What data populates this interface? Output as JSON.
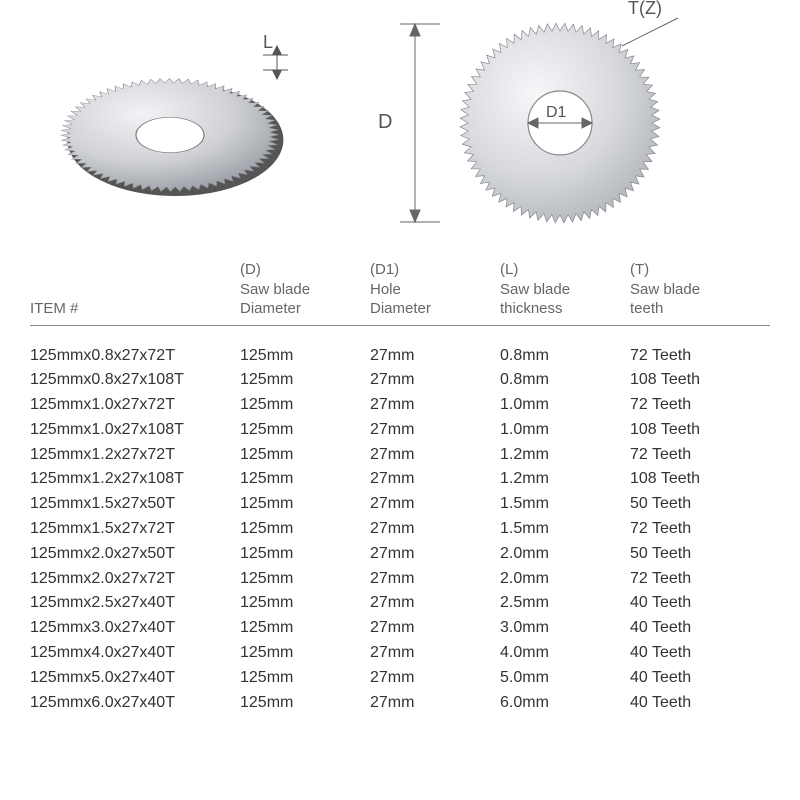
{
  "diagram": {
    "label_L": "L",
    "label_D": "D",
    "label_D1": "D1",
    "label_TZ": "T(Z)",
    "blade_outer_r": 95,
    "blade_inner_r": 30,
    "teeth_count": 72,
    "colors": {
      "blade_fill": "#d8dade",
      "blade_stroke": "#888",
      "blade_shadow": "#555",
      "dim_line": "#666",
      "text": "#555"
    }
  },
  "table": {
    "header_item": "ITEM #",
    "header_D_code": "(D)",
    "header_D_label": "Saw blade\nDiameter",
    "header_D1_code": "(D1)",
    "header_D1_label": "Hole\nDiameter",
    "header_L_code": "(L)",
    "header_L_label": "Saw blade\nthickness",
    "header_T_code": "(T)",
    "header_T_label": "Saw blade\nteeth",
    "rows": [
      {
        "item": "125mmx0.8x27x72T",
        "D": "125mm",
        "D1": "27mm",
        "L": "0.8mm",
        "T": "72 Teeth"
      },
      {
        "item": "125mmx0.8x27x108T",
        "D": "125mm",
        "D1": "27mm",
        "L": "0.8mm",
        "T": "108 Teeth"
      },
      {
        "item": "125mmx1.0x27x72T",
        "D": "125mm",
        "D1": "27mm",
        "L": "1.0mm",
        "T": "72 Teeth"
      },
      {
        "item": "125mmx1.0x27x108T",
        "D": "125mm",
        "D1": "27mm",
        "L": "1.0mm",
        "T": "108 Teeth"
      },
      {
        "item": "125mmx1.2x27x72T",
        "D": "125mm",
        "D1": "27mm",
        "L": "1.2mm",
        "T": "72 Teeth"
      },
      {
        "item": "125mmx1.2x27x108T",
        "D": "125mm",
        "D1": "27mm",
        "L": "1.2mm",
        "T": "108 Teeth"
      },
      {
        "item": "125mmx1.5x27x50T",
        "D": "125mm",
        "D1": "27mm",
        "L": "1.5mm",
        "T": "50 Teeth"
      },
      {
        "item": "125mmx1.5x27x72T",
        "D": "125mm",
        "D1": "27mm",
        "L": "1.5mm",
        "T": "72 Teeth"
      },
      {
        "item": "125mmx2.0x27x50T",
        "D": "125mm",
        "D1": "27mm",
        "L": "2.0mm",
        "T": "50 Teeth"
      },
      {
        "item": "125mmx2.0x27x72T",
        "D": "125mm",
        "D1": "27mm",
        "L": "2.0mm",
        "T": "72 Teeth"
      },
      {
        "item": "125mmx2.5x27x40T",
        "D": "125mm",
        "D1": "27mm",
        "L": "2.5mm",
        "T": "40 Teeth"
      },
      {
        "item": "125mmx3.0x27x40T",
        "D": "125mm",
        "D1": "27mm",
        "L": "3.0mm",
        "T": "40 Teeth"
      },
      {
        "item": "125mmx4.0x27x40T",
        "D": "125mm",
        "D1": "27mm",
        "L": "4.0mm",
        "T": "40 Teeth"
      },
      {
        "item": "125mmx5.0x27x40T",
        "D": "125mm",
        "D1": "27mm",
        "L": "5.0mm",
        "T": "40 Teeth"
      },
      {
        "item": "125mmx6.0x27x40T",
        "D": "125mm",
        "D1": "27mm",
        "L": "6.0mm",
        "T": "40 Teeth"
      }
    ]
  }
}
